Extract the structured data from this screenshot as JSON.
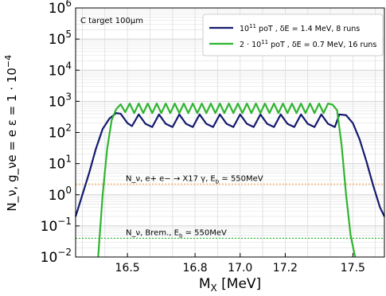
{
  "chart_data": {
    "type": "line",
    "title": "",
    "xlabel": "M_X  [MeV]",
    "ylabel": "N_ν, g_νe = e ε = 1 · 10^-4",
    "x_scale": "linear",
    "y_scale": "log",
    "xlim": [
      16.27,
      17.64
    ],
    "ylim": [
      0.01,
      1000000
    ],
    "x_ticks": [
      "16.5",
      "16.8",
      "17.0",
      "17.2",
      "17.5"
    ],
    "y_ticks": [
      "10^-2",
      "10^-1",
      "10^0",
      "10^1",
      "10^2",
      "10^3",
      "10^4",
      "10^5",
      "10^6"
    ],
    "grid": true,
    "legend_position": "top-right",
    "annotation": "C target 100μm",
    "series": [
      {
        "name": "10^11 poT , δE = 1.4 MeV, 8 runs",
        "color": "#141a6e",
        "x": [
          16.27,
          16.3,
          16.33,
          16.36,
          16.39,
          16.42,
          16.45,
          16.47,
          16.5,
          16.52,
          16.55,
          16.58,
          16.61,
          16.64,
          16.67,
          16.7,
          16.73,
          16.76,
          16.79,
          16.82,
          16.85,
          16.88,
          16.91,
          16.94,
          16.97,
          17.0,
          17.03,
          17.06,
          17.09,
          17.12,
          17.15,
          17.18,
          17.21,
          17.24,
          17.27,
          17.3,
          17.33,
          17.36,
          17.39,
          17.42,
          17.44,
          17.47,
          17.5,
          17.53,
          17.56,
          17.59,
          17.62,
          17.64
        ],
        "values": [
          0.2,
          1,
          5,
          30,
          130,
          280,
          420,
          400,
          200,
          160,
          380,
          190,
          150,
          380,
          190,
          150,
          380,
          190,
          150,
          380,
          190,
          150,
          380,
          190,
          150,
          380,
          190,
          150,
          380,
          190,
          150,
          380,
          190,
          150,
          380,
          190,
          150,
          380,
          190,
          150,
          380,
          360,
          200,
          60,
          12,
          2,
          0.4,
          0.2
        ]
      },
      {
        "name": "2 · 10^11 poT , δE = 0.7 MeV, 16 runs",
        "color": "#2fb52f",
        "x": [
          16.37,
          16.39,
          16.41,
          16.43,
          16.45,
          16.47,
          16.49,
          16.51,
          16.53,
          16.55,
          16.57,
          16.59,
          16.61,
          16.63,
          16.65,
          16.67,
          16.69,
          16.71,
          16.73,
          16.75,
          16.77,
          16.79,
          16.81,
          16.83,
          16.85,
          16.87,
          16.89,
          16.91,
          16.93,
          16.95,
          16.97,
          16.99,
          17.01,
          17.03,
          17.05,
          17.07,
          17.09,
          17.11,
          17.13,
          17.15,
          17.17,
          17.19,
          17.21,
          17.23,
          17.25,
          17.27,
          17.29,
          17.31,
          17.33,
          17.35,
          17.37,
          17.39,
          17.41,
          17.43,
          17.45,
          17.47,
          17.49,
          17.51
        ],
        "values": [
          0.01,
          1,
          30,
          250,
          560,
          800,
          450,
          850,
          420,
          850,
          420,
          850,
          420,
          850,
          420,
          850,
          420,
          850,
          420,
          850,
          420,
          850,
          420,
          850,
          420,
          850,
          420,
          850,
          420,
          850,
          420,
          850,
          420,
          850,
          420,
          850,
          420,
          850,
          420,
          850,
          420,
          850,
          420,
          850,
          420,
          850,
          420,
          850,
          420,
          850,
          420,
          850,
          780,
          520,
          40,
          1,
          0.05,
          0.01
        ]
      }
    ],
    "reference_lines": [
      {
        "label": "N_ν, e+ e− → X17 γ, E_b ≃ 550MeV",
        "value": 2.2,
        "color": "#f5a04a"
      },
      {
        "label": "N_ν, Brem., E_b ≃ 550MeV",
        "value": 0.04,
        "color": "#2fb52f"
      }
    ]
  }
}
